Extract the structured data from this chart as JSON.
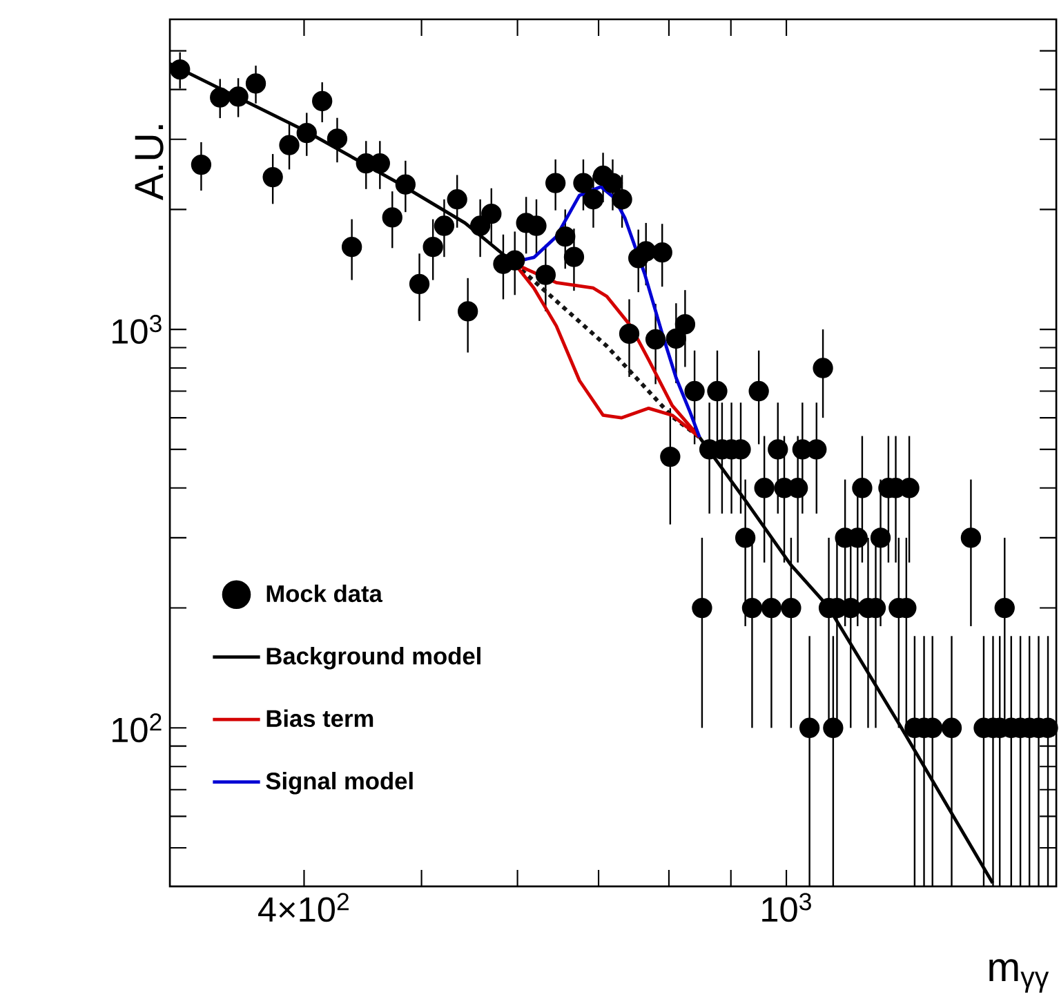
{
  "chart_data": {
    "type": "scatter",
    "xlabel": "m$_{γγ}$",
    "ylabel": "A.U.",
    "log": "xy",
    "legend": "bottom left",
    "xlim": [
      310,
      1670
    ],
    "ylim": [
      40,
      6000
    ],
    "xticks": [
      {
        "value": 400,
        "label": "4×10$^{2}$"
      },
      {
        "value": 500,
        "label": null
      },
      {
        "value": 600,
        "label": null
      },
      {
        "value": 700,
        "label": null
      },
      {
        "value": 800,
        "label": null
      },
      {
        "value": 900,
        "label": null
      },
      {
        "value": 1000,
        "label": "10$^{3}$"
      }
    ],
    "yticks": [
      {
        "value": 50,
        "label": null
      },
      {
        "value": 60,
        "label": null
      },
      {
        "value": 70,
        "label": null
      },
      {
        "value": 80,
        "label": null
      },
      {
        "value": 90,
        "label": null
      },
      {
        "value": 100,
        "label": "10$^{2}$"
      },
      {
        "value": 200,
        "label": null
      },
      {
        "value": 300,
        "label": null
      },
      {
        "value": 400,
        "label": null
      },
      {
        "value": 500,
        "label": null
      },
      {
        "value": 600,
        "label": null
      },
      {
        "value": 700,
        "label": null
      },
      {
        "value": 800,
        "label": null
      },
      {
        "value": 900,
        "label": null
      },
      {
        "value": 1000,
        "label": "10$^{3}$"
      },
      {
        "value": 2000,
        "label": null
      },
      {
        "value": 3000,
        "label": null
      },
      {
        "value": 4000,
        "label": null
      },
      {
        "value": 5000,
        "label": null
      },
      {
        "value": 6000,
        "label": null
      }
    ],
    "series": [
      {
        "name": "Mock data",
        "color": "#000000",
        "marker": "circle",
        "x": [
          316,
          329,
          341,
          353,
          365,
          377,
          389,
          402,
          414,
          426,
          438,
          450,
          462,
          473,
          485,
          498,
          511,
          522,
          535,
          546,
          559,
          571,
          584,
          597,
          610,
          622,
          633,
          645,
          657,
          668,
          680,
          693,
          706,
          719,
          732,
          742,
          755,
          766,
          780,
          790,
          802,
          811,
          825,
          840,
          852,
          864,
          877,
          885,
          901,
          917,
          925,
          937,
          949,
          959,
          972,
          984,
          996,
          1009,
          1022,
          1031,
          1045,
          1059,
          1072,
          1084,
          1093,
          1101,
          1118,
          1130,
          1145,
          1155,
          1168,
          1185,
          1196,
          1214,
          1231,
          1238,
          1256,
          1263,
          1276,
          1299,
          1320,
          1369,
          1420,
          1455,
          1481,
          1500,
          1514,
          1533,
          1560,
          1587,
          1615,
          1644
        ],
        "values": [
          4490,
          2590,
          3820,
          3840,
          4140,
          2410,
          2900,
          3110,
          3740,
          3010,
          1610,
          2610,
          2610,
          1910,
          2310,
          1300,
          1610,
          1820,
          2120,
          1110,
          1820,
          1950,
          1460,
          1490,
          1850,
          1820,
          1370,
          2330,
          1710,
          1520,
          2330,
          2120,
          2430,
          2330,
          2120,
          975,
          1510,
          1570,
          944,
          1560,
          479,
          948,
          1030,
          700,
          200,
          500,
          700,
          500,
          500,
          500,
          300,
          200,
          700,
          400,
          200,
          500,
          400,
          200,
          400,
          500,
          100,
          500,
          800,
          200,
          100,
          200,
          300,
          200,
          300,
          400,
          200,
          200,
          300,
          400,
          400,
          200,
          200,
          400,
          100,
          100,
          100,
          100,
          300,
          100,
          100,
          100,
          200,
          100,
          100,
          100,
          100,
          100
        ],
        "errors": [
          470,
          360,
          430,
          430,
          450,
          345,
          380,
          385,
          430,
          385,
          280,
          360,
          360,
          310,
          340,
          250,
          280,
          300,
          320,
          235,
          300,
          310,
          270,
          270,
          300,
          300,
          260,
          340,
          290,
          270,
          340,
          320,
          345,
          340,
          320,
          215,
          270,
          280,
          215,
          280,
          155,
          215,
          225,
          185,
          100,
          155,
          185,
          155,
          155,
          155,
          120,
          100,
          185,
          140,
          100,
          155,
          140,
          100,
          140,
          155,
          [
            40,
            170
          ],
          155,
          200,
          100,
          [
            40,
            170
          ],
          100,
          120,
          100,
          120,
          140,
          100,
          100,
          120,
          140,
          140,
          100,
          100,
          140,
          [
            40,
            170
          ],
          [
            40,
            170
          ],
          [
            40,
            170
          ],
          [
            40,
            170
          ],
          120,
          [
            40,
            170
          ],
          [
            40,
            170
          ],
          [
            40,
            170
          ],
          100,
          [
            40,
            170
          ],
          [
            40,
            170
          ],
          [
            40,
            170
          ],
          [
            40,
            170
          ],
          [
            40,
            170
          ]
        ]
      },
      {
        "name": "Background model",
        "type": "line",
        "color": "#000000",
        "marker": "none",
        "line_style": "solid",
        "x": [
          310,
          400,
          476,
          543,
          597,
          720,
          848,
          924,
          1008,
          1082,
          1242,
          1480
        ],
        "values": [
          4640,
          3160,
          2350,
          1850,
          1460,
          null,
          536,
          374,
          257,
          202,
          101,
          40.8
        ]
      },
      {
        "type": "line",
        "color": "#141414",
        "marker": "none",
        "line_style": "dotted",
        "x": [
          597,
          711,
          805,
          848
        ],
        "values": [
          1460,
          908,
          604,
          536
        ]
      },
      {
        "name": "Bias term",
        "type": "line",
        "color": "#d40000",
        "marker": "none",
        "line_style": "solid",
        "x": [
          597,
          646,
          693,
          711,
          744,
          770,
          805,
          848
        ],
        "values": [
          1460,
          1310,
          1270,
          1210,
          1020,
          839,
          644,
          536
        ]
      },
      {
        "type": "line",
        "color": "#d40000",
        "marker": "none",
        "line_style": "solid",
        "x": [
          597,
          619,
          646,
          675,
          706,
          731,
          770,
          805,
          848
        ],
        "values": [
          1460,
          1270,
          1020,
          744,
          609,
          600,
          634,
          609,
          536
        ]
      },
      {
        "name": "Signal model",
        "type": "line",
        "color": "#0000d4",
        "marker": "none",
        "line_style": "solid",
        "x": [
          597,
          619,
          646,
          675,
          703,
          721,
          736,
          764,
          790,
          811,
          833,
          848
        ],
        "values": [
          1480,
          1515,
          1710,
          2170,
          2280,
          2140,
          1900,
          1380,
          976,
          756,
          619,
          536
        ]
      }
    ]
  }
}
